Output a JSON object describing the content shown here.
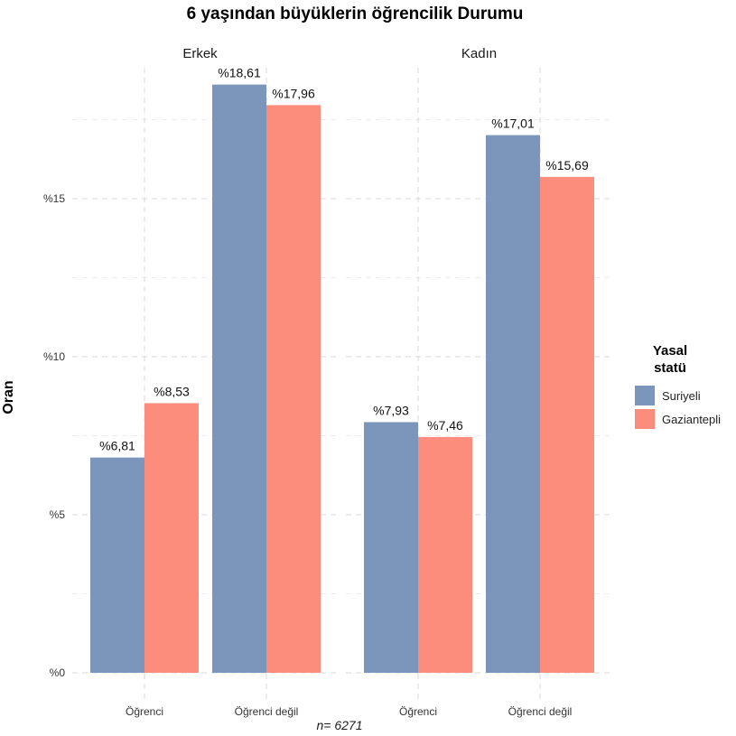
{
  "chart_data": {
    "type": "bar",
    "title": "6 yaşından büyüklerin öğrencilik Durumu",
    "ylabel": "Oran",
    "caption": "n=  6271",
    "ylim": [
      0,
      20
    ],
    "yticks": [
      0,
      5,
      10,
      15
    ],
    "ytick_labels": [
      "%0",
      "%5",
      "%10",
      "%15"
    ],
    "grid": "dashed",
    "legend": {
      "title_lines": [
        "Yasal",
        "statü"
      ],
      "placement": "right",
      "entries": [
        "Suriyeli",
        "Gaziantepli"
      ]
    },
    "colors": {
      "Suriyeli": "#7b96ba",
      "Gaziantepli": "#fc8c7c"
    },
    "categories": [
      "Öğrenci",
      "Öğrenci değil"
    ],
    "panels": [
      {
        "name": "Erkek",
        "series": [
          {
            "name": "Suriyeli",
            "values": [
              6.81,
              18.61
            ],
            "labels": [
              "%6,81",
              "%18,61"
            ]
          },
          {
            "name": "Gaziantepli",
            "values": [
              8.53,
              17.96
            ],
            "labels": [
              "%8,53",
              "%17,96"
            ]
          }
        ]
      },
      {
        "name": "Kadın",
        "series": [
          {
            "name": "Suriyeli",
            "values": [
              7.93,
              17.01
            ],
            "labels": [
              "%7,93",
              "%17,01"
            ]
          },
          {
            "name": "Gaziantepli",
            "values": [
              7.46,
              15.69
            ],
            "labels": [
              "%7,46",
              "%15,69"
            ]
          }
        ]
      }
    ]
  }
}
